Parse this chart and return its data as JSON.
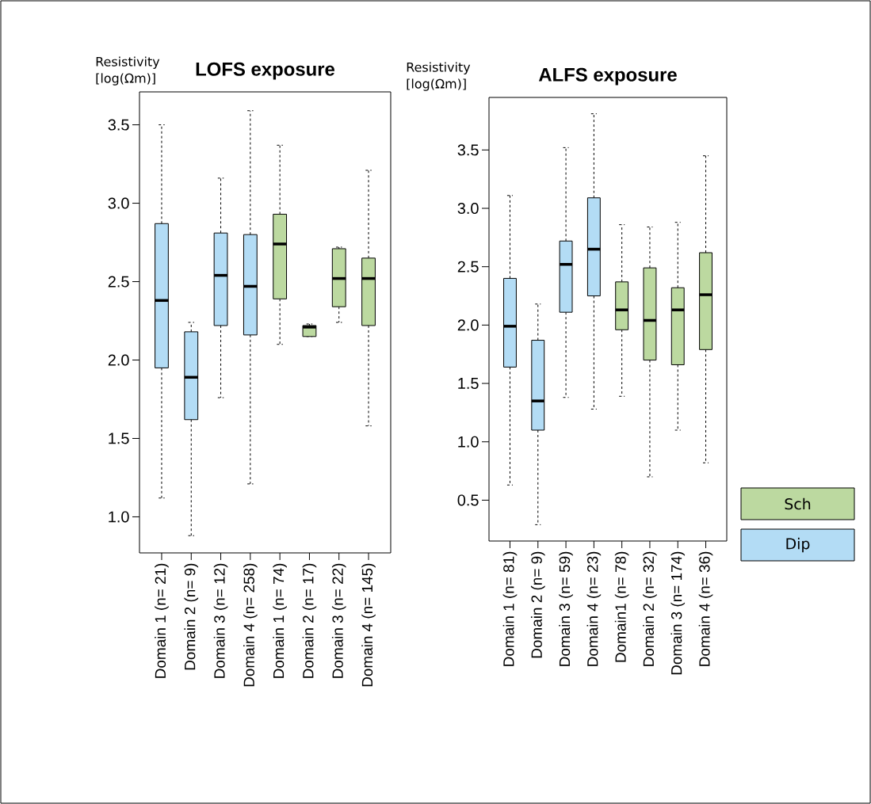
{
  "chart_data": [
    {
      "type": "box",
      "title": "LOFS exposure",
      "ylabel": "Resistivity [log(Ωm)]",
      "categories": [
        "Domain 1 (n= 21)",
        "Domain 2 (n= 9)",
        "Domain 3 (n= 12)",
        "Domain 4 (n= 258)",
        "Domain 1 (n= 74)",
        "Domain 2 (n= 17)",
        "Domain 3 (n= 22)",
        "Domain 4 (n= 145)"
      ],
      "ylim": [
        0.77,
        3.71
      ],
      "yticks": [
        {
          "value": 1.0,
          "label": "1.0"
        },
        {
          "value": 1.5,
          "label": "1.5"
        },
        {
          "value": 2.0,
          "label": "2.0"
        },
        {
          "value": 2.5,
          "label": "2.5"
        },
        {
          "value": 3.0,
          "label": "3.0"
        },
        {
          "value": 3.5,
          "label": "3.5"
        }
      ],
      "series": [
        {
          "color": "#bcd9a0",
          "boxes": [
            null,
            null,
            null,
            null,
            {
              "low": 2.1,
              "q1": 2.39,
              "median": 2.74,
              "q3": 2.93,
              "high": 3.37
            },
            {
              "low": 2.15,
              "q1": 2.15,
              "median": 2.21,
              "q3": 2.22,
              "high": 2.23
            },
            {
              "low": 2.24,
              "q1": 2.34,
              "median": 2.52,
              "q3": 2.71,
              "high": 2.72
            },
            {
              "low": 1.58,
              "q1": 2.22,
              "median": 2.52,
              "q3": 2.65,
              "high": 3.21
            }
          ]
        },
        {
          "color": "#b3dcf5",
          "boxes": [
            {
              "low": 1.12,
              "q1": 1.95,
              "median": 2.38,
              "q3": 2.87,
              "high": 3.5
            },
            {
              "low": 0.88,
              "q1": 1.62,
              "median": 1.89,
              "q3": 2.18,
              "high": 2.24
            },
            {
              "low": 1.76,
              "q1": 2.22,
              "median": 2.54,
              "q3": 2.81,
              "high": 3.16
            },
            {
              "low": 1.21,
              "q1": 2.16,
              "median": 2.47,
              "q3": 2.8,
              "high": 3.59
            },
            null,
            null,
            null,
            null
          ]
        }
      ]
    },
    {
      "type": "box",
      "title": "ALFS exposure",
      "ylabel": "Resistivity [log(Ωm)]",
      "categories": [
        "Domain 1 (n= 81)",
        "Domain 2 (n= 9)",
        "Domain 3 (n= 59)",
        "Domain 4 (n= 23)",
        "Domain1 (n= 78)",
        "Domain 2 (n= 32)",
        "Domain 3 (n= 174)",
        "Domain 4 (n= 36)"
      ],
      "ylim": [
        0.15,
        3.95
      ],
      "yticks": [
        {
          "value": 0.5,
          "label": "0.5"
        },
        {
          "value": 1.0,
          "label": "1.0"
        },
        {
          "value": 1.5,
          "label": "1.5"
        },
        {
          "value": 2.0,
          "label": "2.0"
        },
        {
          "value": 2.5,
          "label": "2.5"
        },
        {
          "value": 3.0,
          "label": "3.0"
        },
        {
          "value": 3.5,
          "label": "3.5"
        }
      ],
      "legend": "right",
      "series": [
        {
          "name": "Sch",
          "color": "#bcd9a0",
          "boxes": [
            null,
            null,
            null,
            null,
            {
              "low": 1.39,
              "q1": 1.96,
              "median": 2.13,
              "q3": 2.37,
              "high": 2.86
            },
            {
              "low": 0.7,
              "q1": 1.7,
              "median": 2.04,
              "q3": 2.49,
              "high": 2.84
            },
            {
              "low": 1.1,
              "q1": 1.66,
              "median": 2.13,
              "q3": 2.32,
              "high": 2.88
            },
            {
              "low": 0.82,
              "q1": 1.79,
              "median": 2.26,
              "q3": 2.62,
              "high": 3.45
            }
          ]
        },
        {
          "name": "Dip",
          "color": "#b3dcf5",
          "boxes": [
            {
              "low": 0.63,
              "q1": 1.64,
              "median": 1.99,
              "q3": 2.4,
              "high": 3.11
            },
            {
              "low": 0.29,
              "q1": 1.1,
              "median": 1.35,
              "q3": 1.87,
              "high": 2.18
            },
            {
              "low": 1.38,
              "q1": 2.11,
              "median": 2.52,
              "q3": 2.72,
              "high": 3.52
            },
            {
              "low": 1.28,
              "q1": 2.25,
              "median": 2.65,
              "q3": 3.09,
              "high": 3.81
            },
            null,
            null,
            null,
            null
          ]
        }
      ]
    }
  ]
}
